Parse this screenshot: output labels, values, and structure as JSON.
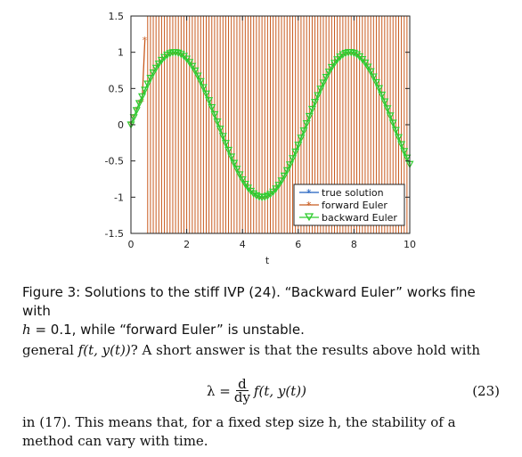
{
  "chart_data": {
    "type": "line",
    "xlabel": "t",
    "ylabel": "",
    "xlim": [
      0,
      10
    ],
    "ylim": [
      -1.5,
      1.5
    ],
    "xticks": [
      0,
      2,
      4,
      6,
      8,
      10
    ],
    "yticks": [
      1.5,
      1,
      0.5,
      0,
      -0.5,
      -1,
      -1.5
    ],
    "ytick_labels": [
      "1.5",
      "1",
      "0.5",
      "0",
      "-0.5",
      "-1",
      "-1.5"
    ],
    "xtick_labels": [
      "0",
      "2",
      "4",
      "6",
      "8",
      "10"
    ],
    "legend_position": "bottom-right",
    "series": [
      {
        "name": "true solution",
        "color": "#1f5fbf",
        "marker": "asterisk",
        "function": "sin(t)",
        "x_range": [
          0,
          10
        ],
        "step": 0.1
      },
      {
        "name": "forward Euler",
        "color": "#c85a1e",
        "marker": "asterisk",
        "behavior": "unstable oscillation between +/- large values after t ≈ 0.5",
        "points": [
          [
            0,
            0
          ],
          [
            0.1,
            0.1
          ],
          [
            0.2,
            0.2
          ],
          [
            0.3,
            0.3
          ],
          [
            0.4,
            0.32
          ],
          [
            0.5,
            1.17
          ]
        ]
      },
      {
        "name": "backward Euler",
        "color": "#2ecc2e",
        "marker": "triangle-down",
        "function": "sin(t)",
        "x_range": [
          0,
          10
        ],
        "step": 0.1
      }
    ]
  },
  "caption": {
    "prefix": "Figure 3: Solutions to the stiff IVP (24). “Backward Euler” works fine with",
    "line2_pre": "h",
    "line2_post": " = 0.1, while “forward Euler” is unstable."
  },
  "para1": {
    "text_pre": "general ",
    "math": "f(t, y(t))",
    "text_post": "? A short answer is that the results above hold with"
  },
  "equation": {
    "lhs": "λ =",
    "num": "d",
    "den": "dy",
    "rhs": "f(t, y(t))",
    "number": "(23)"
  },
  "para2": {
    "line": "in (17). This means that, for a fixed step size h, the stability of a method can vary with time."
  }
}
